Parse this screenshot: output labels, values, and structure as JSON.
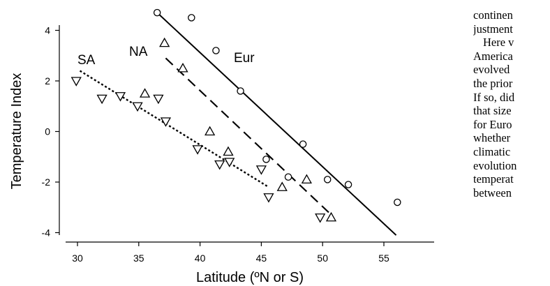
{
  "chart_data": {
    "type": "scatter",
    "xlabel": "Latitude (ºN or S)",
    "ylabel": "Temperature Index",
    "xlim": [
      28.5,
      57
    ],
    "ylim": [
      -4.2,
      4.8
    ],
    "x_ticks": [
      "30",
      "35",
      "40",
      "45",
      "50",
      "55"
    ],
    "y_ticks": [
      "4",
      "2",
      "0",
      "-2",
      "-4"
    ],
    "grid": false,
    "series": [
      {
        "name": "Eur",
        "marker": "circle",
        "line_style": "solid",
        "points": [
          [
            36.5,
            4.7
          ],
          [
            39.3,
            4.5
          ],
          [
            41.3,
            3.2
          ],
          [
            43.3,
            1.6
          ],
          [
            45.4,
            -1.1
          ],
          [
            47.2,
            -1.8
          ],
          [
            48.4,
            -0.5
          ],
          [
            50.4,
            -1.9
          ],
          [
            52.1,
            -2.1
          ],
          [
            56.1,
            -2.8
          ]
        ],
        "fit_line": [
          [
            36.5,
            4.7
          ],
          [
            56.0,
            -4.1
          ]
        ]
      },
      {
        "name": "NA",
        "marker": "triangle-up",
        "line_style": "dashed",
        "points": [
          [
            37.1,
            3.5
          ],
          [
            38.6,
            2.5
          ],
          [
            35.5,
            1.5
          ],
          [
            40.8,
            0.0
          ],
          [
            42.3,
            -0.8
          ],
          [
            46.7,
            -2.2
          ],
          [
            48.7,
            -1.9
          ],
          [
            50.7,
            -3.4
          ]
        ],
        "fit_line": [
          [
            37.2,
            2.9
          ],
          [
            50.5,
            -3.2
          ]
        ]
      },
      {
        "name": "SA",
        "marker": "triangle-down",
        "line_style": "dotted",
        "points": [
          [
            29.9,
            2.0
          ],
          [
            32.0,
            1.3
          ],
          [
            33.5,
            1.4
          ],
          [
            34.9,
            1.0
          ],
          [
            36.6,
            1.3
          ],
          [
            37.2,
            0.4
          ],
          [
            39.8,
            -0.7
          ],
          [
            41.6,
            -1.3
          ],
          [
            42.4,
            -1.2
          ],
          [
            45.0,
            -1.5
          ],
          [
            45.6,
            -2.6
          ],
          [
            49.8,
            -3.4
          ]
        ],
        "fit_line": [
          [
            30.2,
            2.4
          ],
          [
            45.6,
            -2.2
          ]
        ]
      }
    ]
  },
  "side_text": [
    "continen",
    "justment",
    "Here v",
    "America",
    "evolved",
    "the prior",
    "If so, did",
    "that size",
    "for Euro",
    "whether",
    "climatic",
    "evolution",
    "temperat",
    "between"
  ]
}
